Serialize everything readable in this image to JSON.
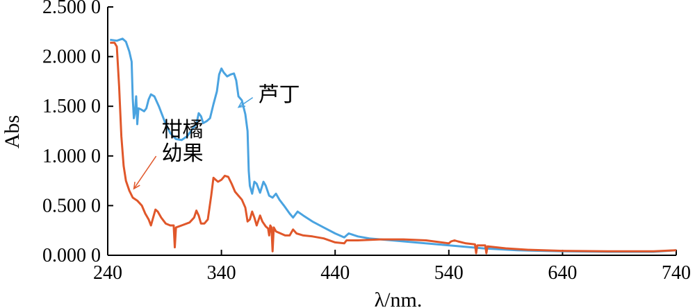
{
  "chart_data": {
    "type": "line",
    "title": "",
    "xlabel": "λ/nm.",
    "ylabel": "Abs",
    "xlim": [
      240,
      740
    ],
    "ylim": [
      0,
      2.5
    ],
    "x_ticks": [
      {
        "value": 240,
        "label": "240"
      },
      {
        "value": 340,
        "label": "340"
      },
      {
        "value": 440,
        "label": "440"
      },
      {
        "value": 540,
        "label": "540"
      },
      {
        "value": 640,
        "label": "640"
      },
      {
        "value": 740,
        "label": "740"
      }
    ],
    "y_ticks": [
      {
        "value": 0,
        "label": "0.000 0"
      },
      {
        "value": 0.5,
        "label": "0.500 0"
      },
      {
        "value": 1.0,
        "label": "1.000 0"
      },
      {
        "value": 1.5,
        "label": "1.500 0"
      },
      {
        "value": 2.0,
        "label": "2.000 0"
      },
      {
        "value": 2.5,
        "label": "2.500 0"
      }
    ],
    "grid": false,
    "legend": "none",
    "series": [
      {
        "name": "芦丁",
        "color": "#4aa3e0",
        "points": [
          [
            242,
            2.17
          ],
          [
            248,
            2.16
          ],
          [
            253,
            2.18
          ],
          [
            256,
            2.15
          ],
          [
            259,
            2.05
          ],
          [
            261,
            1.95
          ],
          [
            262,
            1.58
          ],
          [
            263,
            1.38
          ],
          [
            264,
            1.44
          ],
          [
            265,
            1.6
          ],
          [
            265.6,
            1.44
          ],
          [
            266,
            1.32
          ],
          [
            267,
            1.48
          ],
          [
            269,
            1.47
          ],
          [
            272,
            1.45
          ],
          [
            274,
            1.48
          ],
          [
            276,
            1.57
          ],
          [
            278,
            1.62
          ],
          [
            281,
            1.6
          ],
          [
            285,
            1.5
          ],
          [
            290,
            1.35
          ],
          [
            295,
            1.23
          ],
          [
            300,
            1.17
          ],
          [
            305,
            1.16
          ],
          [
            310,
            1.2
          ],
          [
            315,
            1.28
          ],
          [
            318,
            1.32
          ],
          [
            320,
            1.43
          ],
          [
            322,
            1.4
          ],
          [
            324,
            1.33
          ],
          [
            327,
            1.35
          ],
          [
            330,
            1.38
          ],
          [
            333,
            1.52
          ],
          [
            336,
            1.65
          ],
          [
            338,
            1.82
          ],
          [
            340,
            1.88
          ],
          [
            342,
            1.84
          ],
          [
            345,
            1.8
          ],
          [
            348,
            1.82
          ],
          [
            351,
            1.83
          ],
          [
            353,
            1.76
          ],
          [
            355,
            1.6
          ],
          [
            358,
            1.56
          ],
          [
            361,
            1.42
          ],
          [
            363,
            1.25
          ],
          [
            364,
            0.85
          ],
          [
            365,
            0.7
          ],
          [
            367,
            0.62
          ],
          [
            369,
            0.74
          ],
          [
            371,
            0.72
          ],
          [
            374,
            0.63
          ],
          [
            377,
            0.74
          ],
          [
            379,
            0.7
          ],
          [
            382,
            0.6
          ],
          [
            385,
            0.58
          ],
          [
            388,
            0.62
          ],
          [
            391,
            0.56
          ],
          [
            395,
            0.5
          ],
          [
            400,
            0.42
          ],
          [
            403,
            0.38
          ],
          [
            407,
            0.44
          ],
          [
            412,
            0.4
          ],
          [
            420,
            0.34
          ],
          [
            430,
            0.28
          ],
          [
            440,
            0.22
          ],
          [
            448,
            0.18
          ],
          [
            452,
            0.22
          ],
          [
            460,
            0.19
          ],
          [
            470,
            0.17
          ],
          [
            490,
            0.15
          ],
          [
            510,
            0.13
          ],
          [
            530,
            0.11
          ],
          [
            550,
            0.09
          ],
          [
            570,
            0.07
          ],
          [
            600,
            0.05
          ],
          [
            640,
            0.04
          ],
          [
            680,
            0.035
          ],
          [
            720,
            0.035
          ],
          [
            740,
            0.05
          ]
        ]
      },
      {
        "name": "柑橘幼果",
        "color": "#e0572a",
        "points": [
          [
            242,
            2.14
          ],
          [
            246,
            2.14
          ],
          [
            248,
            2.1
          ],
          [
            250,
            1.7
          ],
          [
            252,
            1.2
          ],
          [
            254,
            0.9
          ],
          [
            256,
            0.75
          ],
          [
            259,
            0.65
          ],
          [
            262,
            0.58
          ],
          [
            266,
            0.55
          ],
          [
            270,
            0.5
          ],
          [
            273,
            0.42
          ],
          [
            276,
            0.36
          ],
          [
            278,
            0.3
          ],
          [
            280,
            0.38
          ],
          [
            282,
            0.46
          ],
          [
            284,
            0.44
          ],
          [
            287,
            0.38
          ],
          [
            291,
            0.32
          ],
          [
            295,
            0.3
          ],
          [
            298,
            0.3
          ],
          [
            299,
            0.08
          ],
          [
            300,
            0.28
          ],
          [
            305,
            0.3
          ],
          [
            312,
            0.33
          ],
          [
            316,
            0.38
          ],
          [
            318,
            0.45
          ],
          [
            320,
            0.4
          ],
          [
            322,
            0.32
          ],
          [
            325,
            0.32
          ],
          [
            328,
            0.36
          ],
          [
            331,
            0.6
          ],
          [
            333,
            0.78
          ],
          [
            335,
            0.76
          ],
          [
            337,
            0.74
          ],
          [
            340,
            0.76
          ],
          [
            343,
            0.8
          ],
          [
            346,
            0.79
          ],
          [
            349,
            0.72
          ],
          [
            352,
            0.64
          ],
          [
            355,
            0.6
          ],
          [
            358,
            0.56
          ],
          [
            361,
            0.48
          ],
          [
            363,
            0.34
          ],
          [
            365,
            0.36
          ],
          [
            367,
            0.44
          ],
          [
            369,
            0.38
          ],
          [
            371,
            0.3
          ],
          [
            374,
            0.4
          ],
          [
            376,
            0.34
          ],
          [
            379,
            0.29
          ],
          [
            381,
            0.27
          ],
          [
            382,
            0.2
          ],
          [
            383,
            0.3
          ],
          [
            384,
            0.28
          ],
          [
            385,
            0.04
          ],
          [
            386,
            0.28
          ],
          [
            388,
            0.24
          ],
          [
            392,
            0.22
          ],
          [
            396,
            0.2
          ],
          [
            400,
            0.2
          ],
          [
            403,
            0.26
          ],
          [
            406,
            0.22
          ],
          [
            412,
            0.2
          ],
          [
            420,
            0.19
          ],
          [
            430,
            0.17
          ],
          [
            440,
            0.13
          ],
          [
            448,
            0.12
          ],
          [
            450,
            0.15
          ],
          [
            460,
            0.15
          ],
          [
            480,
            0.16
          ],
          [
            500,
            0.16
          ],
          [
            520,
            0.15
          ],
          [
            540,
            0.12
          ],
          [
            542,
            0.14
          ],
          [
            545,
            0.15
          ],
          [
            548,
            0.14
          ],
          [
            555,
            0.12
          ],
          [
            563,
            0.11
          ],
          [
            564,
            0.02
          ],
          [
            565,
            0.1
          ],
          [
            572,
            0.1
          ],
          [
            573,
            0.02
          ],
          [
            574,
            0.09
          ],
          [
            590,
            0.07
          ],
          [
            610,
            0.055
          ],
          [
            640,
            0.045
          ],
          [
            680,
            0.04
          ],
          [
            720,
            0.04
          ],
          [
            740,
            0.05
          ]
        ]
      }
    ],
    "annotations": [
      {
        "label": "芦丁",
        "series": "芦丁",
        "text_at": [
          370,
          1.63
        ],
        "arrow_to": [
          355,
          1.49
        ]
      },
      {
        "label_lines": [
          "柑橘",
          "幼果"
        ],
        "series": "柑橘幼果",
        "text_at": [
          285,
          1.04
        ],
        "arrow_to": [
          263,
          0.67
        ]
      }
    ]
  }
}
